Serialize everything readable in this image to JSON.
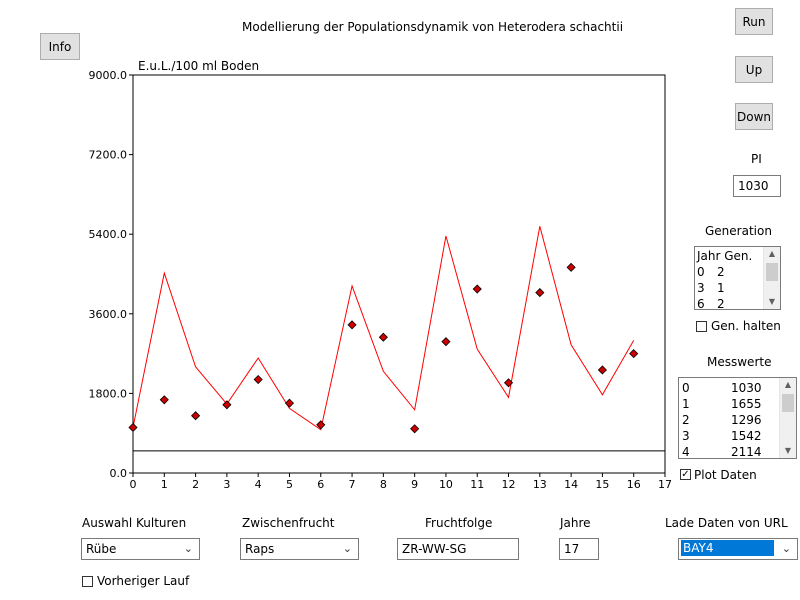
{
  "window": {
    "title": "Modellierung der Populationsdynamik von Heterodera schachtii"
  },
  "buttons": {
    "info": "Info",
    "run": "Run",
    "up": "Up",
    "down": "Down"
  },
  "pi": {
    "label": "PI",
    "value": "1030"
  },
  "generation": {
    "label": "Generation",
    "header": "Jahr Gen.",
    "rows": [
      [
        "0",
        "2"
      ],
      [
        "3",
        "1"
      ],
      [
        "6",
        "2"
      ]
    ],
    "hold_label": "Gen. halten",
    "hold_checked": false
  },
  "messwerte": {
    "label": "Messwerte",
    "rows": [
      [
        "0",
        "1030"
      ],
      [
        "1",
        "1655"
      ],
      [
        "2",
        "1296"
      ],
      [
        "3",
        "1542"
      ],
      [
        "4",
        "2114"
      ]
    ]
  },
  "plot_daten": {
    "label": "Plot Daten",
    "checked": true
  },
  "controls": {
    "kulturen": {
      "label": "Auswahl Kulturen",
      "value": "Rübe"
    },
    "zwischenfrucht": {
      "label": "Zwischenfrucht",
      "value": "Raps"
    },
    "fruchtfolge": {
      "label": "Fruchtfolge",
      "value": "ZR-WW-SG"
    },
    "jahre": {
      "label": "Jahre",
      "value": "17"
    },
    "url": {
      "label": "Lade Daten von URL",
      "value": "BAY4"
    },
    "vorheriger": {
      "label": "Vorheriger Lauf",
      "checked": false
    }
  },
  "colors": {
    "model": "#ff0000",
    "measured": "#cc0000",
    "selection": "#0078d7"
  },
  "chart_data": {
    "type": "line",
    "ylabel": "E.u.L./100 ml Boden",
    "xlim": [
      0,
      17
    ],
    "ylim": [
      0,
      9000
    ],
    "yticks": [
      "0.0",
      "1800.0",
      "3600.0",
      "5400.0",
      "7200.0",
      "9000.0"
    ],
    "xticks": [
      "0",
      "1",
      "2",
      "3",
      "4",
      "5",
      "6",
      "7",
      "8",
      "9",
      "10",
      "11",
      "12",
      "13",
      "14",
      "15",
      "16",
      "17"
    ],
    "threshold": 500,
    "series": [
      {
        "x": [
          0,
          1,
          2,
          3,
          4,
          5,
          6,
          7,
          8,
          9,
          10,
          11,
          12,
          13,
          14,
          15,
          16
        ],
        "values": [
          1030,
          4520,
          2400,
          1560,
          2600,
          1460,
          980,
          4230,
          2300,
          1430,
          5360,
          2800,
          1710,
          5580,
          2900,
          1770,
          3000
        ]
      },
      {
        "x": [
          0,
          1,
          2,
          3,
          4,
          5,
          6,
          7,
          8,
          9,
          10,
          11,
          12,
          13,
          14,
          15,
          16
        ],
        "values": [
          1030,
          1655,
          1296,
          1542,
          2114,
          1580,
          1090,
          3350,
          3070,
          1000,
          2970,
          4160,
          2040,
          4080,
          4650,
          2330,
          2700
        ]
      }
    ]
  }
}
